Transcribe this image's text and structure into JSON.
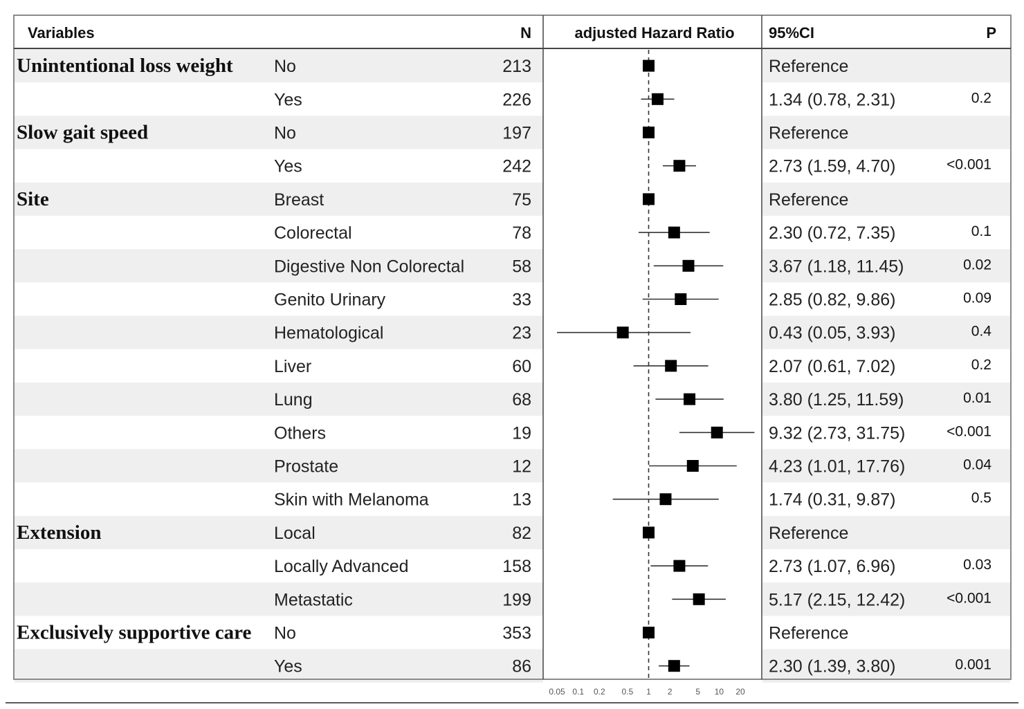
{
  "headers": {
    "variables": "Variables",
    "n": "N",
    "hr": "adjusted Hazard Ratio",
    "ci": "95%CI",
    "p": "P"
  },
  "chart_data": {
    "type": "forest",
    "xscale": "log",
    "xlim": [
      0.05,
      20
    ],
    "xticks": [
      0.05,
      0.1,
      0.2,
      0.5,
      1,
      2,
      5,
      10,
      20
    ],
    "xtick_labels": [
      "0.05",
      "0.1",
      "0.2",
      "0.5",
      "1",
      "2",
      "5",
      "10",
      "20"
    ],
    "reference_line": 1,
    "rows": [
      {
        "group": "Unintentional loss weight",
        "level": "No",
        "n": "213",
        "hr": 1,
        "lo": null,
        "hi": null,
        "ci_text": "Reference",
        "p": ""
      },
      {
        "group": "",
        "level": "Yes",
        "n": "226",
        "hr": 1.34,
        "lo": 0.78,
        "hi": 2.31,
        "ci_text": "1.34 (0.78, 2.31)",
        "p": "0.2"
      },
      {
        "group": "Slow gait speed",
        "level": "No",
        "n": "197",
        "hr": 1,
        "lo": null,
        "hi": null,
        "ci_text": "Reference",
        "p": ""
      },
      {
        "group": "",
        "level": "Yes",
        "n": "242",
        "hr": 2.73,
        "lo": 1.59,
        "hi": 4.7,
        "ci_text": "2.73 (1.59, 4.70)",
        "p": "<0.001"
      },
      {
        "group": "Site",
        "level": "Breast",
        "n": "75",
        "hr": 1,
        "lo": null,
        "hi": null,
        "ci_text": "Reference",
        "p": ""
      },
      {
        "group": "",
        "level": "Colorectal",
        "n": "78",
        "hr": 2.3,
        "lo": 0.72,
        "hi": 7.35,
        "ci_text": "2.30 (0.72, 7.35)",
        "p": "0.1"
      },
      {
        "group": "",
        "level": "Digestive Non Colorectal",
        "n": "58",
        "hr": 3.67,
        "lo": 1.18,
        "hi": 11.45,
        "ci_text": "3.67 (1.18, 11.45)",
        "p": "0.02"
      },
      {
        "group": "",
        "level": "Genito Urinary",
        "n": "33",
        "hr": 2.85,
        "lo": 0.82,
        "hi": 9.86,
        "ci_text": "2.85 (0.82, 9.86)",
        "p": "0.09"
      },
      {
        "group": "",
        "level": "Hematological",
        "n": "23",
        "hr": 0.43,
        "lo": 0.05,
        "hi": 3.93,
        "ci_text": "0.43 (0.05, 3.93)",
        "p": "0.4"
      },
      {
        "group": "",
        "level": "Liver",
        "n": "60",
        "hr": 2.07,
        "lo": 0.61,
        "hi": 7.02,
        "ci_text": "2.07 (0.61, 7.02)",
        "p": "0.2"
      },
      {
        "group": "",
        "level": "Lung",
        "n": "68",
        "hr": 3.8,
        "lo": 1.25,
        "hi": 11.59,
        "ci_text": "3.80 (1.25, 11.59)",
        "p": "0.01"
      },
      {
        "group": "",
        "level": "Others",
        "n": "19",
        "hr": 9.32,
        "lo": 2.73,
        "hi": 31.75,
        "ci_text": "9.32 (2.73, 31.75)",
        "p": "<0.001"
      },
      {
        "group": "",
        "level": "Prostate",
        "n": "12",
        "hr": 4.23,
        "lo": 1.01,
        "hi": 17.76,
        "ci_text": "4.23 (1.01, 17.76)",
        "p": "0.04"
      },
      {
        "group": "",
        "level": "Skin with Melanoma",
        "n": "13",
        "hr": 1.74,
        "lo": 0.31,
        "hi": 9.87,
        "ci_text": "1.74 (0.31, 9.87)",
        "p": "0.5"
      },
      {
        "group": "Extension",
        "level": "Local",
        "n": "82",
        "hr": 1,
        "lo": null,
        "hi": null,
        "ci_text": "Reference",
        "p": ""
      },
      {
        "group": "",
        "level": "Locally Advanced",
        "n": "158",
        "hr": 2.73,
        "lo": 1.07,
        "hi": 6.96,
        "ci_text": "2.73 (1.07, 6.96)",
        "p": "0.03"
      },
      {
        "group": "",
        "level": "Metastatic",
        "n": "199",
        "hr": 5.17,
        "lo": 2.15,
        "hi": 12.42,
        "ci_text": "5.17 (2.15, 12.42)",
        "p": "<0.001"
      },
      {
        "group": "Exclusively supportive care",
        "level": "No",
        "n": "353",
        "hr": 1,
        "lo": null,
        "hi": null,
        "ci_text": "Reference",
        "p": ""
      },
      {
        "group": "",
        "level": "Yes",
        "n": "86",
        "hr": 2.3,
        "lo": 1.39,
        "hi": 3.8,
        "ci_text": "2.30 (1.39, 3.80)",
        "p": "0.001"
      }
    ]
  }
}
